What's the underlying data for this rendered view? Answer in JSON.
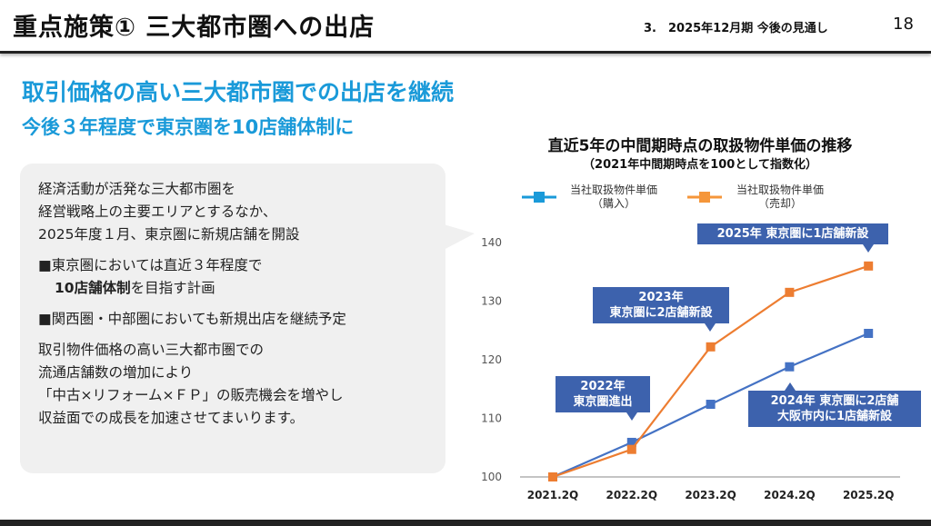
{
  "header": {
    "title": "重点施策① 三大都市圏への出店",
    "section": "3.　2025年12月期 今後の見通し",
    "page": "18"
  },
  "headline": "取引価格の高い三大都市圏での出店を継続",
  "subheadline": "今後３年程度で東京圏を10店舗体制に",
  "bubble": {
    "p1": [
      "経済活動が活発な三大都市圏を",
      "経営戦略上の主要エリアとするなか、",
      "2025年度１月、東京圏に新規店舗を開設"
    ],
    "b1_line1": "■東京圏においては直近３年程度で",
    "b1_bold": "10店舗体制",
    "b1_rest": "を目指す計画",
    "b2": "■関西圏・中部圏においても新規出店を継続予定",
    "p2": [
      "取引物件価格の高い三大都市圏での",
      "流通店舗数の増加により",
      "「中古×リフォーム×ＦＰ」の販売機会を増やし",
      "収益面での成長を加速させてまいります。"
    ]
  },
  "chart_data": {
    "type": "line",
    "title": "直近5年の中間期時点の取扱物件単価の推移",
    "subtitle": "（2021年中間期時点を100として指数化）",
    "categories": [
      "2021.2Q",
      "2022.2Q",
      "2023.2Q",
      "2024.2Q",
      "2025.2Q"
    ],
    "ylim": [
      100,
      140
    ],
    "yticks": [
      100,
      110,
      120,
      130,
      140
    ],
    "series": [
      {
        "name": "当社取扱物件単価（購入）",
        "line1": "当社取扱物件単価",
        "line2": "（購入）",
        "color": "#4472c4",
        "legend_color": "#1a9ad9",
        "values": [
          100,
          105.9,
          112.4,
          118.8,
          124.5
        ]
      },
      {
        "name": "当社取扱物件単価（売却）",
        "line1": "当社取扱物件単価",
        "line2": "（売却）",
        "color": "#ed7d31",
        "legend_color": "#f5963a",
        "values": [
          100,
          104.7,
          122.2,
          131.5,
          136.0
        ]
      }
    ],
    "annotations": [
      {
        "line1": "2022年",
        "line2": "東京圏進出"
      },
      {
        "line1": "2023年",
        "line2": "東京圏に2店舗新設"
      },
      {
        "line1": "2024年 東京圏に2店舗",
        "line2": "大阪市内に1店舗新設"
      },
      {
        "line1": "2025年 東京圏に1店舗新設"
      }
    ]
  }
}
